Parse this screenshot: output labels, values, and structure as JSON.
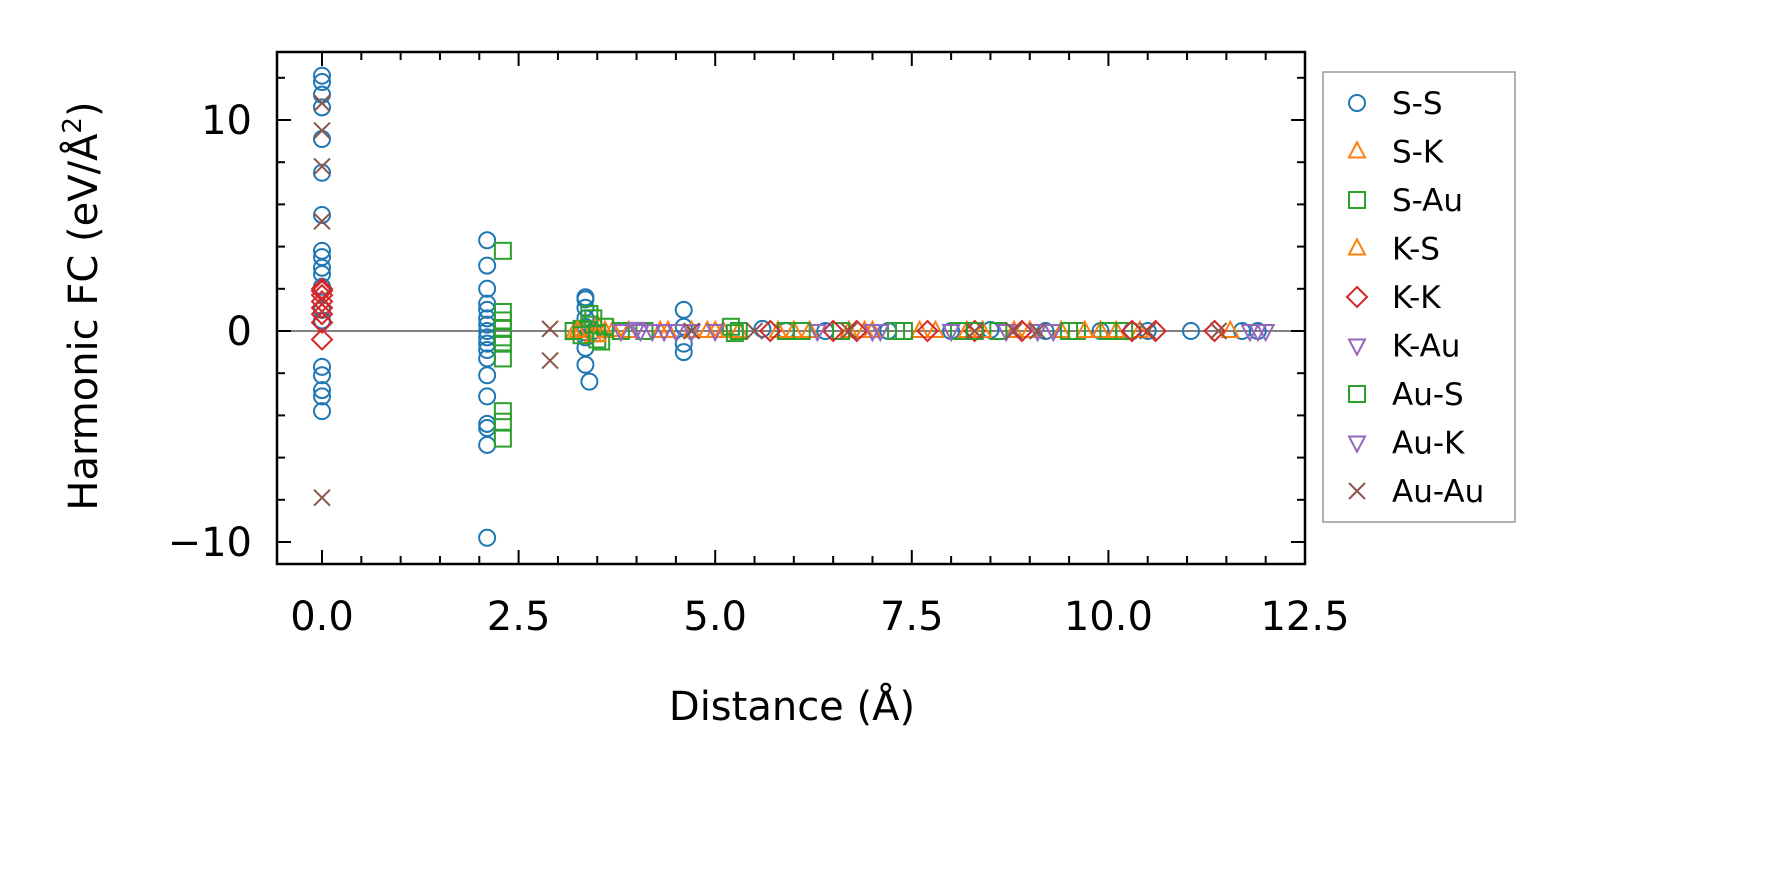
{
  "chart_data": {
    "type": "scatter",
    "xlabel": "Distance (Å)",
    "ylabel": "Harmonic FC (eV/Å²)",
    "ylabel_parts": {
      "main": "Harmonic FC (eV/Å",
      "sup": "2",
      "close": ")"
    },
    "xlim": [
      -0.2,
      12.5
    ],
    "ylim": [
      -11,
      13
    ],
    "xticks": [
      0.0,
      2.5,
      5.0,
      7.5,
      10.0,
      12.5
    ],
    "xtick_labels": [
      "0.0",
      "2.5",
      "5.0",
      "7.5",
      "10.0",
      "12.5"
    ],
    "yticks": [
      -10,
      0,
      10
    ],
    "ytick_labels": [
      "−10",
      "0",
      "10"
    ],
    "grid": false,
    "zero_line": true,
    "legend_position": "outside right",
    "series": [
      {
        "name": "S-S",
        "marker": "circle",
        "color": "#1f77b4",
        "x": [
          0,
          0,
          0,
          0,
          0,
          0,
          0,
          0,
          0,
          0,
          0,
          0,
          0,
          0,
          0,
          0,
          0,
          0,
          0,
          2.1,
          2.1,
          2.1,
          2.1,
          2.1,
          2.1,
          2.1,
          2.1,
          2.1,
          2.1,
          2.1,
          2.1,
          2.1,
          2.1,
          2.1,
          2.1,
          2.1,
          2.1,
          3.35,
          3.35,
          3.35,
          3.35,
          3.35,
          3.35,
          3.35,
          3.35,
          3.4,
          3.45,
          4.6,
          4.6,
          4.6,
          4.6,
          5.6,
          5.9,
          6.4,
          7.2,
          8.0,
          8.5,
          9.2,
          9.9,
          10.3,
          10.5,
          11.05,
          11.7,
          11.9
        ],
        "y": [
          12.1,
          11.8,
          11.2,
          10.6,
          9.1,
          7.5,
          5.5,
          3.8,
          3.5,
          3.0,
          2.7,
          2.1,
          1.0,
          -1.7,
          -2.1,
          -2.8,
          -3.1,
          -3.8,
          0.5,
          4.3,
          3.1,
          2.0,
          1.3,
          1.0,
          0.6,
          0.3,
          0.0,
          -0.3,
          -0.6,
          -0.9,
          -1.3,
          -2.1,
          -3.1,
          -4.4,
          -4.6,
          -5.4,
          -9.8,
          1.6,
          1.5,
          1.1,
          0.6,
          0.2,
          -0.3,
          -0.8,
          -1.6,
          -2.4,
          0.0,
          1.0,
          0.2,
          -0.6,
          -1.0,
          0.1,
          0.0,
          0.0,
          0.0,
          0.0,
          0.05,
          0.0,
          0.0,
          0.0,
          0.0,
          0.0,
          0.0,
          0.0
        ]
      },
      {
        "name": "S-K",
        "marker": "triangle-up",
        "color": "#ff7f0e",
        "x": [
          3.2,
          3.3,
          3.45,
          3.5,
          3.6,
          3.7,
          3.9,
          4.3,
          4.7,
          4.9,
          5.1,
          5.3,
          5.8,
          6.2,
          6.7,
          7.0,
          7.6,
          8.2,
          8.8,
          9.4,
          9.9,
          10.4,
          11.55
        ],
        "y": [
          -0.1,
          0.1,
          -0.2,
          0.3,
          0.0,
          0.05,
          0.0,
          0.0,
          0.0,
          0.0,
          0.0,
          0.0,
          0.0,
          0.0,
          0.0,
          0.0,
          0.0,
          0.0,
          0.0,
          0.0,
          0.0,
          0.0,
          0.0
        ]
      },
      {
        "name": "S-Au",
        "marker": "square",
        "color": "#2ca02c",
        "x": [
          2.3,
          2.3,
          2.3,
          2.3,
          2.3,
          2.3,
          2.3,
          2.3,
          2.3,
          2.3,
          3.2,
          3.3,
          3.4,
          3.4,
          3.5,
          3.5,
          3.6,
          3.8,
          4.1,
          5.2,
          5.3,
          5.9,
          6.6,
          7.3,
          8.1,
          8.6,
          9.6,
          10.2
        ],
        "y": [
          3.8,
          0.9,
          0.5,
          0.1,
          -0.3,
          -0.6,
          -1.3,
          -3.8,
          -4.3,
          -5.1,
          0.0,
          0.1,
          0.8,
          0.3,
          -0.1,
          -0.4,
          0.2,
          0.0,
          0.0,
          0.2,
          0.0,
          0.0,
          0.0,
          0.0,
          0.0,
          0.0,
          0.0,
          0.0
        ]
      },
      {
        "name": "K-S",
        "marker": "triangle-up",
        "color": "#ff7f0e",
        "x": [
          3.25,
          3.5,
          4.4,
          5.0,
          6.0,
          6.9,
          7.8,
          8.4,
          9.0,
          9.7,
          10.1
        ],
        "y": [
          0.0,
          -0.2,
          0.0,
          0.0,
          0.0,
          0.0,
          0.0,
          0.0,
          0.0,
          0.0,
          0.0
        ]
      },
      {
        "name": "K-K",
        "marker": "diamond",
        "color": "#d62728",
        "x": [
          0,
          0,
          0,
          0,
          0,
          0,
          0,
          0,
          5.7,
          6.5,
          6.8,
          7.7,
          8.3,
          8.9,
          10.3,
          10.6,
          11.35
        ],
        "y": [
          2.0,
          1.7,
          1.4,
          1.1,
          0.8,
          0.4,
          -0.4,
          1.9,
          0.0,
          0.0,
          0.0,
          0.0,
          0.0,
          0.0,
          0.0,
          0.0,
          0.0
        ]
      },
      {
        "name": "K-Au",
        "marker": "triangle-down",
        "color": "#9467bd",
        "x": [
          3.8,
          4.0,
          4.2,
          4.5,
          4.7,
          6.3,
          7.1,
          8.7,
          9.3,
          11.9,
          12.0
        ],
        "y": [
          0.0,
          0.1,
          0.0,
          0.0,
          0.0,
          0.0,
          0.0,
          0.0,
          0.0,
          0.0,
          0.0
        ]
      },
      {
        "name": "Au-S",
        "marker": "square",
        "color": "#2ca02c",
        "x": [
          3.3,
          3.45,
          3.55,
          5.25,
          6.1,
          7.4,
          8.3,
          9.5,
          10.0
        ],
        "y": [
          -0.2,
          0.6,
          -0.5,
          -0.1,
          0.0,
          0.0,
          0.0,
          0.0,
          0.0
        ]
      },
      {
        "name": "Au-K",
        "marker": "triangle-down",
        "color": "#9467bd",
        "x": [
          4.05,
          4.35,
          5.0,
          7.0,
          8.0,
          9.1,
          11.8
        ],
        "y": [
          0.0,
          0.0,
          0.0,
          0.0,
          0.0,
          0.0,
          0.0
        ]
      },
      {
        "name": "Au-Au",
        "marker": "x",
        "color": "#8c564b",
        "x": [
          0,
          0,
          0,
          0,
          0,
          2.9,
          2.9,
          4.7,
          5.5,
          6.7,
          8.3,
          8.8,
          9.1,
          10.5,
          11.4
        ],
        "y": [
          10.8,
          9.5,
          7.8,
          5.2,
          -7.9,
          0.1,
          -1.4,
          0.0,
          0.0,
          0.0,
          0.0,
          0.0,
          0.0,
          0.0,
          0.0
        ]
      }
    ]
  }
}
